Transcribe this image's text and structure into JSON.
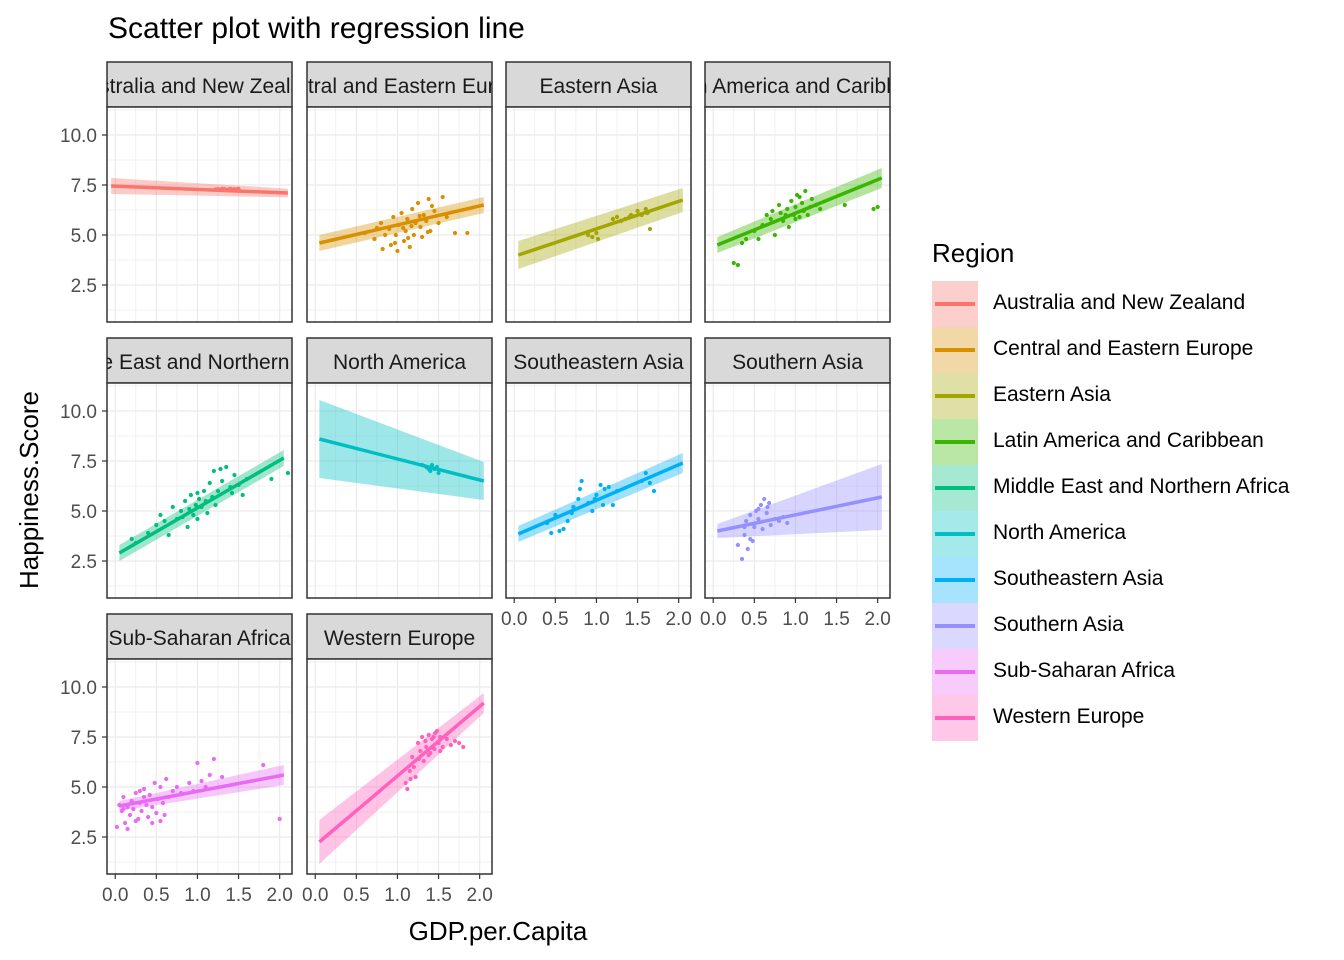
{
  "chart_data": {
    "type": "scatter",
    "title": "Scatter plot with regression line",
    "xlabel": "GDP.per.Capita",
    "ylabel": "Happiness.Score",
    "xlim": [
      -0.1,
      2.15
    ],
    "ylim": [
      0.65,
      11.4
    ],
    "x_ticks": [
      "0.0",
      "0.5",
      "1.0",
      "1.5",
      "2.0"
    ],
    "y_ticks": [
      "2.5",
      "5.0",
      "7.5",
      "10.0"
    ],
    "grid": true,
    "legend": {
      "title": "Region",
      "position": "right"
    },
    "facets": [
      {
        "label": "Australia and New Zealand",
        "color": "#F8766D",
        "fit": {
          "x0": -0.05,
          "y0": 7.45,
          "x1": 2.1,
          "y1": 7.1,
          "ci0": 0.4,
          "ci1": 0.22
        },
        "points": [
          [
            1.22,
            7.28
          ],
          [
            1.25,
            7.29
          ],
          [
            1.28,
            7.26
          ],
          [
            1.3,
            7.31
          ],
          [
            1.33,
            7.3
          ],
          [
            1.35,
            7.25
          ],
          [
            1.38,
            7.28
          ],
          [
            1.4,
            7.31
          ],
          [
            1.42,
            7.27
          ],
          [
            1.45,
            7.29
          ],
          [
            1.48,
            7.28
          ],
          [
            1.5,
            7.3
          ]
        ]
      },
      {
        "label": "Central and Eastern Europe",
        "color": "#D89000",
        "fit": {
          "x0": 0.05,
          "y0": 4.6,
          "x1": 2.05,
          "y1": 6.5,
          "ci0": 0.4,
          "ci1": 0.4
        },
        "points": [
          [
            0.6,
            5.1
          ],
          [
            0.72,
            4.8
          ],
          [
            0.8,
            5.6
          ],
          [
            0.82,
            4.3
          ],
          [
            0.9,
            5.3
          ],
          [
            0.92,
            4.5
          ],
          [
            0.95,
            5.9
          ],
          [
            0.98,
            5.0
          ],
          [
            1.0,
            4.2
          ],
          [
            1.02,
            5.5
          ],
          [
            1.05,
            6.1
          ],
          [
            1.08,
            4.7
          ],
          [
            1.1,
            5.2
          ],
          [
            1.12,
            5.8
          ],
          [
            1.15,
            4.4
          ],
          [
            1.18,
            6.3
          ],
          [
            1.2,
            5.0
          ],
          [
            1.22,
            5.6
          ],
          [
            1.25,
            6.6
          ],
          [
            1.28,
            5.4
          ],
          [
            1.3,
            4.9
          ],
          [
            1.32,
            6.0
          ],
          [
            1.35,
            5.7
          ],
          [
            1.38,
            6.8
          ],
          [
            1.4,
            5.2
          ],
          [
            1.45,
            6.2
          ],
          [
            1.5,
            5.6
          ],
          [
            1.55,
            6.9
          ],
          [
            1.6,
            5.9
          ],
          [
            1.7,
            5.1
          ],
          [
            1.85,
            5.1
          ],
          [
            0.85,
            5.0
          ],
          [
            0.97,
            4.6
          ],
          [
            1.07,
            5.35
          ],
          [
            1.17,
            5.45
          ],
          [
            1.27,
            5.95
          ],
          [
            1.37,
            5.15
          ],
          [
            1.42,
            6.45
          ],
          [
            0.75,
            5.35
          ],
          [
            1.13,
            4.85
          ]
        ]
      },
      {
        "label": "Eastern Asia",
        "color": "#A3A500",
        "fit": {
          "x0": 0.05,
          "y0": 4.0,
          "x1": 2.05,
          "y1": 6.75,
          "ci0": 0.7,
          "ci1": 0.6
        },
        "points": [
          [
            0.9,
            5.0
          ],
          [
            1.0,
            5.1
          ],
          [
            0.95,
            4.9
          ],
          [
            1.2,
            5.8
          ],
          [
            1.25,
            5.9
          ],
          [
            1.3,
            5.7
          ],
          [
            1.4,
            5.9
          ],
          [
            1.42,
            6.0
          ],
          [
            1.5,
            6.2
          ],
          [
            1.55,
            6.0
          ],
          [
            1.62,
            6.1
          ],
          [
            1.65,
            5.3
          ],
          [
            1.6,
            6.3
          ],
          [
            1.02,
            4.8
          ],
          [
            1.35,
            5.8
          ]
        ]
      },
      {
        "label": "Latin America and Caribbean",
        "color": "#39B600",
        "fit": {
          "x0": 0.05,
          "y0": 4.5,
          "x1": 2.05,
          "y1": 7.85,
          "ci0": 0.4,
          "ci1": 0.5
        },
        "points": [
          [
            0.25,
            3.6
          ],
          [
            0.3,
            3.5
          ],
          [
            0.35,
            4.6
          ],
          [
            0.4,
            4.8
          ],
          [
            0.5,
            5.2
          ],
          [
            0.55,
            4.8
          ],
          [
            0.6,
            5.5
          ],
          [
            0.65,
            6.0
          ],
          [
            0.7,
            5.8
          ],
          [
            0.72,
            6.2
          ],
          [
            0.75,
            5.0
          ],
          [
            0.8,
            6.5
          ],
          [
            0.85,
            5.7
          ],
          [
            0.88,
            6.0
          ],
          [
            0.9,
            6.3
          ],
          [
            0.92,
            5.4
          ],
          [
            0.95,
            6.7
          ],
          [
            0.98,
            6.0
          ],
          [
            1.0,
            6.4
          ],
          [
            1.02,
            7.0
          ],
          [
            1.05,
            5.9
          ],
          [
            1.08,
            6.6
          ],
          [
            1.1,
            6.2
          ],
          [
            1.12,
            7.2
          ],
          [
            1.15,
            6.0
          ],
          [
            1.2,
            6.8
          ],
          [
            1.25,
            6.5
          ],
          [
            1.3,
            6.3
          ],
          [
            1.6,
            6.5
          ],
          [
            1.95,
            6.3
          ],
          [
            2.0,
            6.4
          ],
          [
            1.0,
            5.8
          ],
          [
            1.05,
            6.9
          ],
          [
            0.82,
            6.1
          ],
          [
            1.18,
            6.4
          ]
        ]
      },
      {
        "label": "Middle East and Northern Africa",
        "color": "#00BF7D",
        "fit": {
          "x0": 0.05,
          "y0": 2.9,
          "x1": 2.05,
          "y1": 7.65,
          "ci0": 0.4,
          "ci1": 0.4
        },
        "points": [
          [
            0.2,
            3.6
          ],
          [
            0.25,
            3.4
          ],
          [
            0.4,
            3.9
          ],
          [
            0.5,
            4.3
          ],
          [
            0.55,
            4.8
          ],
          [
            0.6,
            4.5
          ],
          [
            0.7,
            5.2
          ],
          [
            0.75,
            4.6
          ],
          [
            0.8,
            5.0
          ],
          [
            0.85,
            5.5
          ],
          [
            0.88,
            4.2
          ],
          [
            0.9,
            5.1
          ],
          [
            0.92,
            5.8
          ],
          [
            0.95,
            4.8
          ],
          [
            0.98,
            5.3
          ],
          [
            1.0,
            4.6
          ],
          [
            1.02,
            5.6
          ],
          [
            1.05,
            5.2
          ],
          [
            1.08,
            6.0
          ],
          [
            1.1,
            5.5
          ],
          [
            1.12,
            4.9
          ],
          [
            1.15,
            6.4
          ],
          [
            1.18,
            5.7
          ],
          [
            1.2,
            7.0
          ],
          [
            1.25,
            6.0
          ],
          [
            1.3,
            6.5
          ],
          [
            1.35,
            7.2
          ],
          [
            1.4,
            6.2
          ],
          [
            1.45,
            6.8
          ],
          [
            1.5,
            6.3
          ],
          [
            1.55,
            5.8
          ],
          [
            1.6,
            6.6
          ],
          [
            1.9,
            6.6
          ],
          [
            2.1,
            6.9
          ],
          [
            0.65,
            3.8
          ],
          [
            0.82,
            4.7
          ],
          [
            1.0,
            5.9
          ],
          [
            1.22,
            5.3
          ],
          [
            1.28,
            7.1
          ],
          [
            1.42,
            5.9
          ]
        ]
      },
      {
        "label": "North America",
        "color": "#00BFC4",
        "fit": {
          "x0": 0.05,
          "y0": 8.6,
          "x1": 2.05,
          "y1": 6.5,
          "ci0": 1.95,
          "ci1": 0.95
        },
        "points": [
          [
            1.3,
            7.3
          ],
          [
            1.35,
            7.2
          ],
          [
            1.38,
            7.1
          ],
          [
            1.4,
            7.0
          ],
          [
            1.42,
            7.3
          ],
          [
            1.45,
            7.1
          ],
          [
            1.48,
            7.2
          ],
          [
            1.5,
            6.9
          ]
        ]
      },
      {
        "label": "Southeastern Asia",
        "color": "#00B0F6",
        "fit": {
          "x0": 0.05,
          "y0": 3.85,
          "x1": 2.05,
          "y1": 7.4,
          "ci0": 0.4,
          "ci1": 0.5
        },
        "points": [
          [
            0.4,
            4.4
          ],
          [
            0.5,
            4.8
          ],
          [
            0.55,
            4.0
          ],
          [
            0.6,
            4.1
          ],
          [
            0.65,
            4.5
          ],
          [
            0.7,
            4.9
          ],
          [
            0.72,
            5.2
          ],
          [
            0.78,
            5.6
          ],
          [
            0.8,
            6.1
          ],
          [
            0.82,
            6.5
          ],
          [
            0.9,
            5.4
          ],
          [
            0.95,
            5.0
          ],
          [
            1.0,
            5.8
          ],
          [
            1.05,
            6.3
          ],
          [
            1.1,
            6.1
          ],
          [
            1.15,
            6.2
          ],
          [
            1.2,
            5.3
          ],
          [
            1.25,
            6.0
          ],
          [
            1.55,
            6.5
          ],
          [
            1.6,
            6.9
          ],
          [
            1.65,
            6.4
          ],
          [
            1.7,
            6.0
          ],
          [
            0.45,
            3.9
          ],
          [
            0.98,
            5.6
          ],
          [
            1.08,
            5.3
          ]
        ]
      },
      {
        "label": "Southern Asia",
        "color": "#9590FF",
        "fit": {
          "x0": 0.05,
          "y0": 4.0,
          "x1": 2.05,
          "y1": 5.7,
          "ci0": 0.35,
          "ci1": 1.65
        },
        "points": [
          [
            0.3,
            3.3
          ],
          [
            0.35,
            2.6
          ],
          [
            0.38,
            3.8
          ],
          [
            0.4,
            4.5
          ],
          [
            0.42,
            3.1
          ],
          [
            0.45,
            4.8
          ],
          [
            0.48,
            3.5
          ],
          [
            0.5,
            4.2
          ],
          [
            0.52,
            5.0
          ],
          [
            0.55,
            4.6
          ],
          [
            0.58,
            5.3
          ],
          [
            0.6,
            4.1
          ],
          [
            0.62,
            5.6
          ],
          [
            0.65,
            4.9
          ],
          [
            0.68,
            5.4
          ],
          [
            0.7,
            4.3
          ],
          [
            0.75,
            4.6
          ],
          [
            0.8,
            4.5
          ],
          [
            0.85,
            4.7
          ],
          [
            0.9,
            4.4
          ],
          [
            0.45,
            3.6
          ],
          [
            0.55,
            5.1
          ],
          [
            0.38,
            4.2
          ],
          [
            0.66,
            5.2
          ]
        ]
      },
      {
        "label": "Sub-Saharan Africa",
        "color": "#E76BF3",
        "fit": {
          "x0": 0.05,
          "y0": 4.05,
          "x1": 2.05,
          "y1": 5.6,
          "ci0": 0.25,
          "ci1": 0.5
        },
        "points": [
          [
            0.02,
            3.0
          ],
          [
            0.05,
            4.1
          ],
          [
            0.08,
            3.8
          ],
          [
            0.1,
            4.5
          ],
          [
            0.12,
            3.2
          ],
          [
            0.15,
            4.0
          ],
          [
            0.18,
            3.6
          ],
          [
            0.2,
            4.3
          ],
          [
            0.22,
            3.9
          ],
          [
            0.25,
            4.7
          ],
          [
            0.28,
            3.4
          ],
          [
            0.3,
            4.2
          ],
          [
            0.32,
            3.8
          ],
          [
            0.35,
            4.9
          ],
          [
            0.38,
            4.1
          ],
          [
            0.4,
            3.5
          ],
          [
            0.42,
            4.6
          ],
          [
            0.45,
            4.0
          ],
          [
            0.48,
            5.2
          ],
          [
            0.5,
            3.7
          ],
          [
            0.52,
            4.4
          ],
          [
            0.55,
            5.0
          ],
          [
            0.58,
            4.2
          ],
          [
            0.6,
            3.6
          ],
          [
            0.62,
            5.4
          ],
          [
            0.65,
            4.5
          ],
          [
            0.7,
            4.8
          ],
          [
            0.75,
            5.0
          ],
          [
            0.8,
            4.7
          ],
          [
            0.9,
            5.2
          ],
          [
            0.95,
            4.8
          ],
          [
            1.0,
            6.2
          ],
          [
            1.05,
            5.3
          ],
          [
            1.1,
            5.0
          ],
          [
            1.15,
            5.6
          ],
          [
            1.2,
            6.4
          ],
          [
            1.3,
            5.5
          ],
          [
            1.8,
            6.1
          ],
          [
            2.0,
            3.4
          ],
          [
            0.15,
            2.9
          ],
          [
            0.25,
            3.3
          ],
          [
            0.35,
            4.5
          ],
          [
            0.45,
            3.2
          ],
          [
            0.1,
            3.9
          ],
          [
            0.3,
            4.8
          ],
          [
            0.55,
            3.3
          ]
        ]
      },
      {
        "label": "Western Europe",
        "color": "#FF62BC",
        "fit": {
          "x0": 0.05,
          "y0": 2.25,
          "x1": 2.05,
          "y1": 9.2,
          "ci0": 1.1,
          "ci1": 0.5
        },
        "points": [
          [
            1.1,
            5.2
          ],
          [
            1.12,
            4.9
          ],
          [
            1.15,
            5.8
          ],
          [
            1.18,
            6.5
          ],
          [
            1.2,
            6.0
          ],
          [
            1.22,
            5.5
          ],
          [
            1.25,
            7.2
          ],
          [
            1.28,
            6.8
          ],
          [
            1.3,
            7.5
          ],
          [
            1.32,
            6.3
          ],
          [
            1.35,
            7.0
          ],
          [
            1.38,
            7.6
          ],
          [
            1.4,
            6.7
          ],
          [
            1.42,
            7.4
          ],
          [
            1.45,
            6.9
          ],
          [
            1.48,
            7.8
          ],
          [
            1.5,
            7.2
          ],
          [
            1.52,
            7.5
          ],
          [
            1.55,
            7.0
          ],
          [
            1.6,
            7.4
          ],
          [
            1.65,
            7.1
          ],
          [
            1.7,
            7.3
          ],
          [
            1.75,
            7.2
          ],
          [
            1.8,
            7.0
          ],
          [
            1.26,
            6.4
          ],
          [
            1.34,
            7.3
          ],
          [
            1.44,
            7.5
          ],
          [
            1.16,
            5.4
          ],
          [
            1.38,
            6.6
          ],
          [
            1.46,
            7.7
          ],
          [
            1.52,
            6.8
          ]
        ]
      }
    ]
  }
}
